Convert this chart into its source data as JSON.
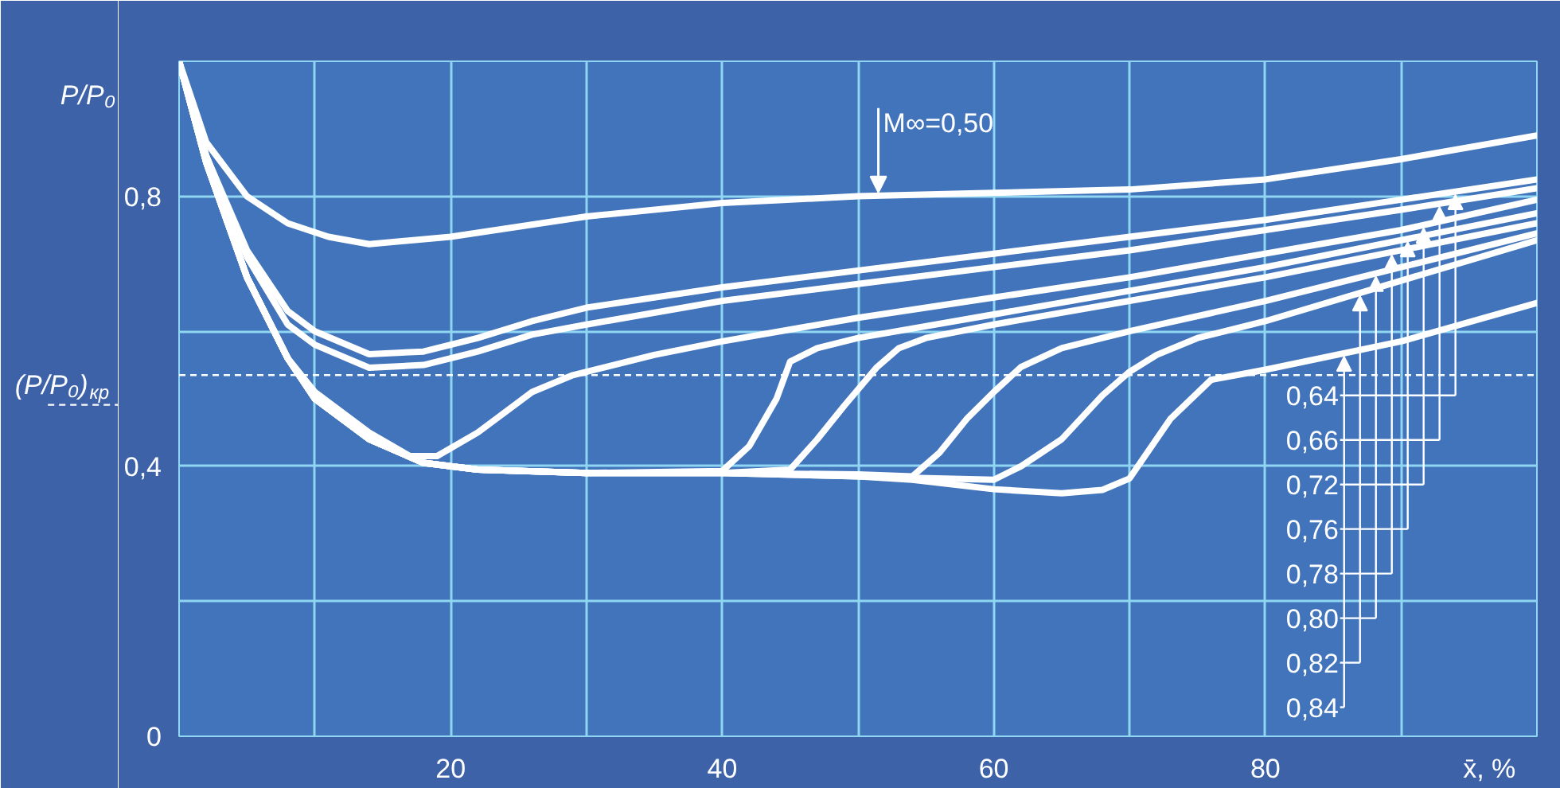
{
  "chart_data": {
    "type": "line",
    "xlabel": "x̄, %",
    "ylabel": "P/P₀",
    "xlim": [
      0,
      100
    ],
    "ylim": [
      0,
      1.0
    ],
    "xticks": [
      {
        "value": 0,
        "label": null
      },
      {
        "value": 10,
        "label": null
      },
      20,
      {
        "value": 30,
        "label": null
      },
      40,
      {
        "value": 50,
        "label": null
      },
      60,
      {
        "value": 70,
        "label": null
      },
      80,
      {
        "value": 90,
        "label": null
      },
      {
        "value": 100,
        "label": null
      }
    ],
    "yticks": [
      0,
      {
        "value": 0.2,
        "label": null
      },
      {
        "value": 0.4,
        "label": "0,4"
      },
      {
        "value": 0.6,
        "label": null
      },
      {
        "value": 0.8,
        "label": "0,8"
      },
      {
        "value": 1.0,
        "label": null
      }
    ],
    "grid": true,
    "legend": "bottom right",
    "line_style": "solid",
    "ref_lines": [
      {
        "axis": "y",
        "value": 0.535,
        "label": "(P/P₀)$_{кр}$",
        "color": "#ffffff",
        "line_style": "dashed"
      }
    ],
    "series": [
      {
        "name": "M∞=0,50",
        "color": "#ffffff",
        "x": [
          0,
          2,
          5,
          8,
          11,
          14,
          20,
          30,
          40,
          50,
          60,
          70,
          80,
          90,
          100
        ],
        "values": [
          1.0,
          0.88,
          0.8,
          0.76,
          0.74,
          0.729,
          0.74,
          0.77,
          0.79,
          0.8,
          0.805,
          0.81,
          0.825,
          0.855,
          0.89
        ]
      },
      {
        "name": "0,64",
        "color": "#ffffff",
        "x": [
          0,
          2,
          5,
          8,
          10,
          14,
          18,
          22,
          26,
          30,
          40,
          50,
          60,
          70,
          80,
          90,
          100
        ],
        "values": [
          1.0,
          0.86,
          0.72,
          0.63,
          0.6,
          0.566,
          0.57,
          0.59,
          0.615,
          0.635,
          0.665,
          0.69,
          0.715,
          0.74,
          0.765,
          0.795,
          0.825
        ]
      },
      {
        "name": "0,66",
        "color": "#ffffff",
        "x": [
          0,
          2,
          5,
          8,
          10,
          14,
          18,
          22,
          26,
          30,
          40,
          50,
          60,
          70,
          80,
          90,
          100
        ],
        "values": [
          1.0,
          0.86,
          0.71,
          0.61,
          0.58,
          0.546,
          0.55,
          0.57,
          0.595,
          0.61,
          0.645,
          0.67,
          0.695,
          0.72,
          0.75,
          0.78,
          0.812
        ]
      },
      {
        "name": "0,72",
        "color": "#ffffff",
        "x": [
          0,
          2,
          5,
          8,
          10,
          14,
          17,
          19,
          22,
          26,
          29,
          35,
          40,
          50,
          60,
          70,
          80,
          90,
          100
        ],
        "values": [
          1.0,
          0.85,
          0.68,
          0.56,
          0.51,
          0.45,
          0.415,
          0.415,
          0.45,
          0.51,
          0.535,
          0.565,
          0.585,
          0.62,
          0.65,
          0.68,
          0.715,
          0.75,
          0.795
        ]
      },
      {
        "name": "0,76",
        "color": "#ffffff",
        "x": [
          0,
          2,
          5,
          8,
          10,
          14,
          18,
          22,
          30,
          40,
          42,
          44,
          45,
          47,
          50,
          60,
          70,
          80,
          90,
          100
        ],
        "values": [
          1.0,
          0.85,
          0.68,
          0.56,
          0.5,
          0.44,
          0.405,
          0.395,
          0.39,
          0.393,
          0.43,
          0.5,
          0.555,
          0.575,
          0.59,
          0.625,
          0.66,
          0.695,
          0.735,
          0.775
        ]
      },
      {
        "name": "0,78",
        "color": "#ffffff",
        "x": [
          0,
          2,
          5,
          8,
          10,
          14,
          18,
          22,
          30,
          40,
          45,
          47,
          49,
          51.4,
          53,
          55,
          60,
          70,
          80,
          90,
          100
        ],
        "values": [
          1.0,
          0.85,
          0.68,
          0.56,
          0.5,
          0.44,
          0.405,
          0.395,
          0.39,
          0.39,
          0.395,
          0.44,
          0.49,
          0.547,
          0.575,
          0.59,
          0.61,
          0.645,
          0.68,
          0.72,
          0.76
        ]
      },
      {
        "name": "0,80",
        "color": "#ffffff",
        "x": [
          0,
          2,
          5,
          8,
          10,
          14,
          18,
          22,
          30,
          40,
          50,
          54,
          56,
          58,
          60,
          62,
          65,
          70,
          80,
          90,
          100
        ],
        "values": [
          1.0,
          0.85,
          0.68,
          0.56,
          0.5,
          0.44,
          0.405,
          0.395,
          0.39,
          0.39,
          0.388,
          0.385,
          0.42,
          0.47,
          0.51,
          0.547,
          0.575,
          0.6,
          0.645,
          0.695,
          0.745
        ]
      },
      {
        "name": "0,82",
        "color": "#ffffff",
        "x": [
          0,
          2,
          5,
          8,
          10,
          14,
          18,
          22,
          30,
          40,
          50,
          54,
          60,
          62,
          65,
          68,
          70,
          72,
          75,
          80,
          90,
          100
        ],
        "values": [
          1.0,
          0.85,
          0.68,
          0.56,
          0.5,
          0.44,
          0.405,
          0.395,
          0.39,
          0.39,
          0.385,
          0.383,
          0.38,
          0.4,
          0.44,
          0.505,
          0.54,
          0.565,
          0.59,
          0.615,
          0.675,
          0.735
        ]
      },
      {
        "name": "0,84",
        "color": "#ffffff",
        "x": [
          0,
          2,
          5,
          8,
          10,
          14,
          18,
          22,
          30,
          40,
          50,
          54,
          60,
          65,
          68,
          70,
          73,
          76,
          80,
          90,
          100
        ],
        "values": [
          1.0,
          0.85,
          0.68,
          0.56,
          0.5,
          0.44,
          0.405,
          0.395,
          0.39,
          0.39,
          0.385,
          0.38,
          0.366,
          0.36,
          0.365,
          0.382,
          0.47,
          0.528,
          0.543,
          0.585,
          0.642
        ]
      }
    ]
  }
}
